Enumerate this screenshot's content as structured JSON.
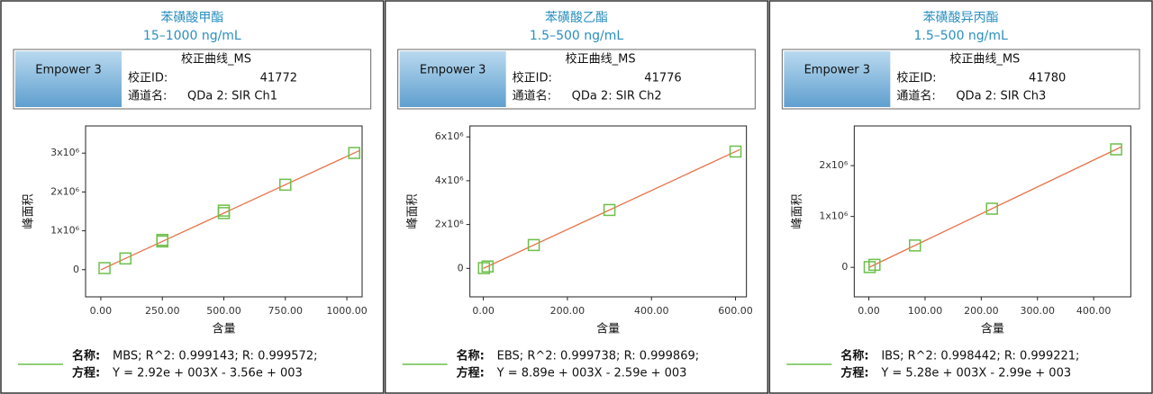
{
  "chart_data": [
    {
      "type": "scatter",
      "title": "苯磺酸甲酯",
      "subtitle": "15–1000 ng/mL",
      "logo": "Empower 3",
      "report_title": "校正曲线_MS",
      "id_label": "校正ID:",
      "id_value": "41772",
      "channel_label": "通道名:",
      "channel_value": "QDa 2: SIR Ch1",
      "xlabel": "含量",
      "ylabel": "峰面积",
      "legend_name_label": "名称:",
      "legend_name": "MBS; R^2: 0.999143; R: 0.999572;",
      "legend_eq_label": "方程:",
      "legend_eq": "Y = 2.92e + 003X - 3.56e + 003",
      "x": [
        15,
        100,
        250,
        250,
        500,
        500,
        750,
        1030
      ],
      "values": [
        40240,
        288440,
        726440,
        766000,
        1456440,
        1520000,
        2186440,
        3004000
      ],
      "color": "#6cbf4a",
      "fit": {
        "x": [
          0,
          1050
        ],
        "values": [
          -3560,
          3062440
        ],
        "color": "#e8734a"
      },
      "xlim": [
        -62,
        1062
      ],
      "ylim": [
        -700000,
        3700000
      ],
      "xticks": [
        {
          "value": 0,
          "label": "0.00"
        },
        {
          "value": 250,
          "label": "250.00"
        },
        {
          "value": 500,
          "label": "500.00"
        },
        {
          "value": 750,
          "label": "750.00"
        },
        {
          "value": 1000,
          "label": "1000.00"
        }
      ],
      "yticks": [
        0,
        {
          "value": 1000000,
          "label": "1x10⁶"
        },
        {
          "value": 2000000,
          "label": "2x10⁶"
        },
        {
          "value": 3000000,
          "label": "3x10⁶"
        }
      ]
    },
    {
      "type": "scatter",
      "title": "苯磺酸乙酯",
      "subtitle": "1.5–500 ng/mL",
      "logo": "Empower 3",
      "report_title": "校正曲线_MS",
      "id_label": "校正ID:",
      "id_value": "41776",
      "channel_label": "通道名:",
      "channel_value": "QDa 2: SIR Ch2",
      "xlabel": "含量",
      "ylabel": "峰面积",
      "legend_name_label": "名称:",
      "legend_name": "EBS; R^2: 0.999738; R: 0.999869;",
      "legend_eq_label": "方程:",
      "legend_eq": "Y = 8.89e + 003X - 2.59e + 003",
      "x": [
        1.5,
        10,
        120,
        300,
        600
      ],
      "values": [
        10745,
        86310,
        1064210,
        2664410,
        5331410
      ],
      "color": "#6cbf4a",
      "fit": {
        "x": [
          0,
          610
        ],
        "values": [
          -2590,
          5420310
        ],
        "color": "#e8734a"
      },
      "xlim": [
        -32,
        626
      ],
      "ylim": [
        -1300000,
        6500000
      ],
      "xticks": [
        {
          "value": 0,
          "label": "0.00"
        },
        {
          "value": 200,
          "label": "200.00"
        },
        {
          "value": 400,
          "label": "400.00"
        },
        {
          "value": 600,
          "label": "600.00"
        }
      ],
      "yticks": [
        0,
        {
          "value": 2000000,
          "label": "2x10⁶"
        },
        {
          "value": 4000000,
          "label": "4x10⁶"
        },
        {
          "value": 6000000,
          "label": "6x10⁶"
        }
      ]
    },
    {
      "type": "scatter",
      "title": "苯磺酸异丙酯",
      "subtitle": "1.5–500 ng/mL",
      "logo": "Empower 3",
      "report_title": "校正曲线_MS",
      "id_label": "校正ID:",
      "id_value": "41780",
      "channel_label": "通道名:",
      "channel_value": "QDa 2: SIR Ch3",
      "xlabel": "含量",
      "ylabel": "峰面积",
      "legend_name_label": "名称:",
      "legend_name": "IBS; R^2: 0.998442; R: 0.999221;",
      "legend_eq_label": "方程:",
      "legend_eq": "Y = 5.28e + 003X - 2.99e + 003",
      "x": [
        1.5,
        10,
        82,
        219,
        440
      ],
      "values": [
        4930,
        49800,
        430000,
        1153000,
        2320000
      ],
      "color": "#6cbf4a",
      "fit": {
        "x": [
          0,
          450
        ],
        "values": [
          -2990,
          2373010
        ],
        "color": "#e8734a"
      },
      "xlim": [
        -26,
        466
      ],
      "ylim": [
        -580000,
        2780000
      ],
      "xticks": [
        {
          "value": 0,
          "label": "0.00"
        },
        {
          "value": 100,
          "label": "100.00"
        },
        {
          "value": 200,
          "label": "200.00"
        },
        {
          "value": 300,
          "label": "300.00"
        },
        {
          "value": 400,
          "label": "400.00"
        }
      ],
      "yticks": [
        0,
        {
          "value": 1000000,
          "label": "1x10⁶"
        },
        {
          "value": 2000000,
          "label": "2x10⁶"
        }
      ]
    }
  ]
}
